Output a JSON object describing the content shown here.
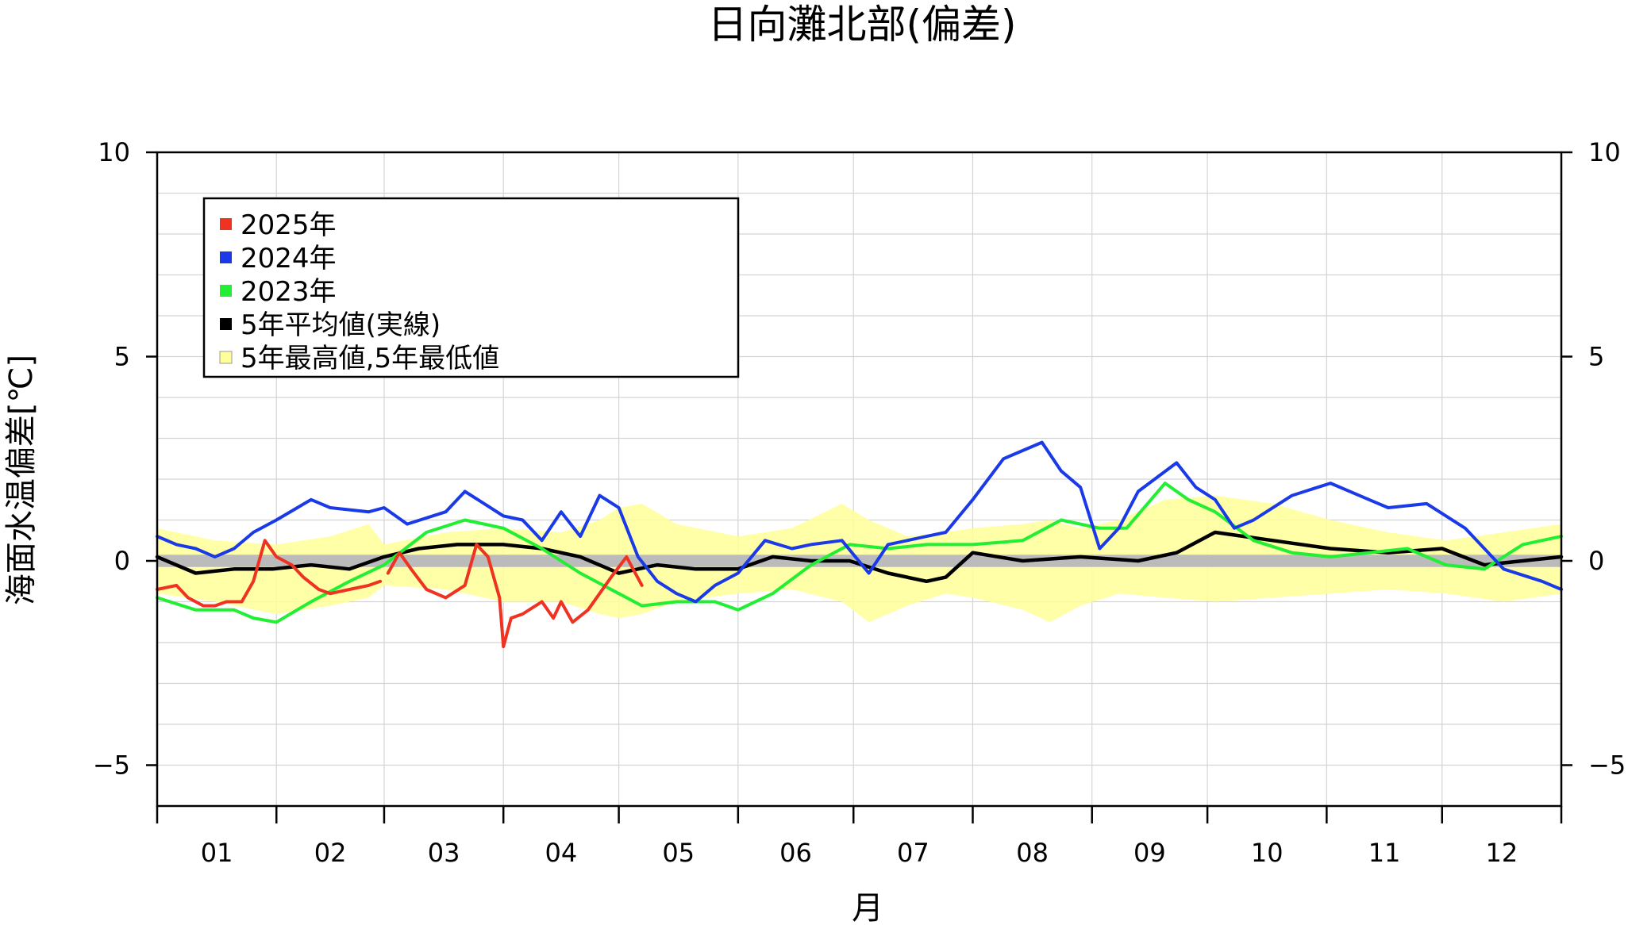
{
  "chart_data": {
    "type": "line",
    "title": "日向灘北部(偏差)",
    "xlabel": "月",
    "ylabel": "海面水温偏差[℃]",
    "xlim": [
      0,
      365
    ],
    "ylim": [
      -6,
      10
    ],
    "y_ticks": [
      10,
      5,
      0,
      -5
    ],
    "y_tick_labels": [
      "10",
      "5",
      "0",
      "−5"
    ],
    "x_month_labels": [
      "01",
      "02",
      "03",
      "04",
      "05",
      "06",
      "07",
      "08",
      "09",
      "10",
      "11",
      "12"
    ],
    "month_starts": [
      0,
      31,
      59,
      90,
      120,
      151,
      181,
      212,
      243,
      273,
      304,
      334,
      365
    ],
    "grid": true,
    "legend_position": "top-left",
    "legend": [
      {
        "label": "2025年",
        "color": "#ee3322"
      },
      {
        "label": "2024年",
        "color": "#1a3ae8"
      },
      {
        "label": "2023年",
        "color": "#22ee33"
      },
      {
        "label": "5年平均値(実線)",
        "color": "#000000"
      },
      {
        "label": "5年最高値,5年最低値",
        "color": "#ffff99"
      }
    ],
    "zero_band_color": "#bbbbbb",
    "band": {
      "name": "5年最高値,5年最低値",
      "color": "#ffff99",
      "x": [
        0,
        15,
        31,
        45,
        55,
        59,
        75,
        90,
        105,
        115,
        120,
        126,
        135,
        151,
        165,
        178,
        185,
        195,
        205,
        212,
        225,
        232,
        240,
        250,
        262,
        275,
        290,
        305,
        320,
        335,
        350,
        365
      ],
      "high": [
        0.8,
        0.5,
        0.4,
        0.6,
        0.9,
        0.4,
        0.7,
        0.8,
        0.7,
        1.0,
        1.3,
        1.4,
        0.9,
        0.6,
        0.8,
        1.4,
        1.0,
        0.6,
        0.7,
        0.8,
        0.9,
        1.0,
        0.8,
        1.0,
        1.5,
        1.6,
        1.4,
        1.0,
        0.7,
        0.5,
        0.7,
        0.9
      ],
      "low": [
        -0.8,
        -1.0,
        -1.3,
        -1.1,
        -0.9,
        -0.6,
        -0.7,
        -1.0,
        -1.0,
        -1.3,
        -1.4,
        -1.3,
        -1.0,
        -0.8,
        -0.7,
        -1.0,
        -1.5,
        -1.1,
        -0.8,
        -0.9,
        -1.2,
        -1.5,
        -1.1,
        -0.8,
        -0.9,
        -1.0,
        -0.9,
        -0.8,
        -0.7,
        -0.8,
        -1.0,
        -0.8
      ]
    },
    "series": [
      {
        "name": "5年平均値(実線)",
        "color": "#000000",
        "x": [
          0,
          10,
          20,
          30,
          40,
          50,
          59,
          68,
          78,
          90,
          100,
          110,
          120,
          130,
          140,
          151,
          160,
          170,
          180,
          190,
          200,
          205,
          212,
          225,
          240,
          255,
          265,
          275,
          290,
          305,
          320,
          334,
          345,
          355,
          365
        ],
        "y": [
          0.1,
          -0.3,
          -0.2,
          -0.2,
          -0.1,
          -0.2,
          0.1,
          0.3,
          0.4,
          0.4,
          0.3,
          0.1,
          -0.3,
          -0.1,
          -0.2,
          -0.2,
          0.1,
          0.0,
          0.0,
          -0.3,
          -0.5,
          -0.4,
          0.2,
          0.0,
          0.1,
          0.0,
          0.2,
          0.7,
          0.5,
          0.3,
          0.2,
          0.3,
          -0.1,
          0.0,
          0.1
        ]
      },
      {
        "name": "2023年",
        "color": "#22ee33",
        "x": [
          0,
          10,
          20,
          25,
          31,
          40,
          50,
          59,
          70,
          80,
          90,
          100,
          110,
          120,
          126,
          135,
          145,
          151,
          160,
          170,
          180,
          190,
          200,
          212,
          225,
          235,
          245,
          252,
          262,
          268,
          275,
          285,
          295,
          305,
          315,
          325,
          335,
          345,
          355,
          365
        ],
        "y": [
          -0.9,
          -1.2,
          -1.2,
          -1.4,
          -1.5,
          -1.0,
          -0.5,
          -0.1,
          0.7,
          1.0,
          0.8,
          0.3,
          -0.3,
          -0.8,
          -1.1,
          -1.0,
          -1.0,
          -1.2,
          -0.8,
          -0.1,
          0.4,
          0.3,
          0.4,
          0.4,
          0.5,
          1.0,
          0.8,
          0.8,
          1.9,
          1.5,
          1.2,
          0.5,
          0.2,
          0.1,
          0.2,
          0.3,
          -0.1,
          -0.2,
          0.4,
          0.6
        ]
      },
      {
        "name": "2024年",
        "color": "#1a3ae8",
        "x": [
          0,
          5,
          10,
          15,
          20,
          25,
          31,
          40,
          45,
          55,
          59,
          65,
          75,
          80,
          85,
          90,
          95,
          100,
          105,
          110,
          115,
          120,
          125,
          130,
          135,
          140,
          145,
          151,
          158,
          165,
          170,
          178,
          185,
          190,
          195,
          200,
          205,
          212,
          220,
          230,
          235,
          240,
          245,
          250,
          255,
          265,
          270,
          275,
          280,
          285,
          295,
          305,
          315,
          320,
          330,
          340,
          350,
          360,
          365
        ],
        "y": [
          0.6,
          0.4,
          0.3,
          0.1,
          0.3,
          0.7,
          1.0,
          1.5,
          1.3,
          1.2,
          1.3,
          0.9,
          1.2,
          1.7,
          1.4,
          1.1,
          1.0,
          0.5,
          1.2,
          0.6,
          1.6,
          1.3,
          0.1,
          -0.5,
          -0.8,
          -1.0,
          -0.6,
          -0.3,
          0.5,
          0.3,
          0.4,
          0.5,
          -0.3,
          0.4,
          0.5,
          0.6,
          0.7,
          1.5,
          2.5,
          2.9,
          2.2,
          1.8,
          0.3,
          0.8,
          1.7,
          2.4,
          1.8,
          1.5,
          0.8,
          1.0,
          1.6,
          1.9,
          1.5,
          1.3,
          1.4,
          0.8,
          -0.2,
          -0.5,
          -0.7
        ]
      },
      {
        "name": "2025年",
        "segments": [
          {
            "x": [
              0,
              5,
              8,
              12,
              15,
              18,
              22,
              25,
              28,
              31,
              35,
              38,
              42,
              45,
              50,
              55,
              58
            ],
            "y": [
              -0.7,
              -0.6,
              -0.9,
              -1.1,
              -1.1,
              -1.0,
              -1.0,
              -0.5,
              0.5,
              0.1,
              -0.1,
              -0.4,
              -0.7,
              -0.8,
              -0.7,
              -0.6,
              -0.5
            ]
          },
          {
            "x": [
              60,
              63,
              66,
              70,
              75,
              80,
              83,
              86,
              89,
              90,
              92,
              95,
              100,
              103,
              105,
              108,
              112,
              115,
              118,
              122,
              126
            ],
            "y": [
              -0.3,
              0.2,
              -0.2,
              -0.7,
              -0.9,
              -0.6,
              0.4,
              0.1,
              -0.9,
              -2.1,
              -1.4,
              -1.3,
              -1.0,
              -1.4,
              -1.0,
              -1.5,
              -1.2,
              -0.8,
              -0.4,
              0.1,
              -0.6
            ]
          }
        ],
        "color": "#ee3322"
      }
    ]
  }
}
